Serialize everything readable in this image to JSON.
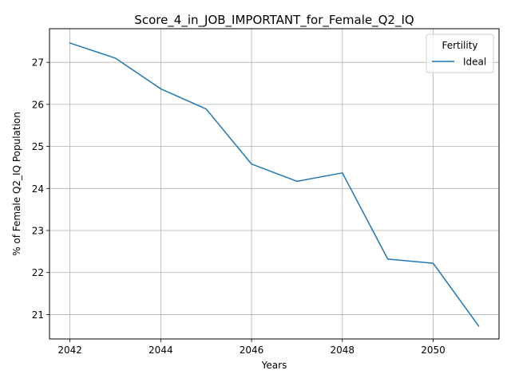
{
  "chart_data": {
    "type": "line",
    "title": "Score_4_in_JOB_IMPORTANT_for_Female_Q2_IQ",
    "xlabel": "Years",
    "ylabel": "% of Female Q2_IQ Population",
    "x": [
      2042,
      2043,
      2044,
      2045,
      2046,
      2047,
      2048,
      2049,
      2050,
      2051
    ],
    "series": [
      {
        "name": "Ideal",
        "color": "#1f77b4",
        "values": [
          27.46,
          27.1,
          26.37,
          25.89,
          24.58,
          24.17,
          24.37,
          22.32,
          22.22,
          20.73
        ]
      }
    ],
    "xticks": [
      2042,
      2044,
      2046,
      2048,
      2050
    ],
    "xtick_labels": [
      "2042",
      "2044",
      "2046",
      "2048",
      "2050"
    ],
    "yticks": [
      21,
      22,
      23,
      24,
      25,
      26,
      27
    ],
    "ytick_labels": [
      "21",
      "22",
      "23",
      "24",
      "25",
      "26",
      "27"
    ],
    "xlim": [
      2041.55,
      2051.45
    ],
    "ylim": [
      20.42,
      27.8
    ],
    "grid": true,
    "legend": {
      "title": "Fertility",
      "placement": "top-right"
    }
  }
}
